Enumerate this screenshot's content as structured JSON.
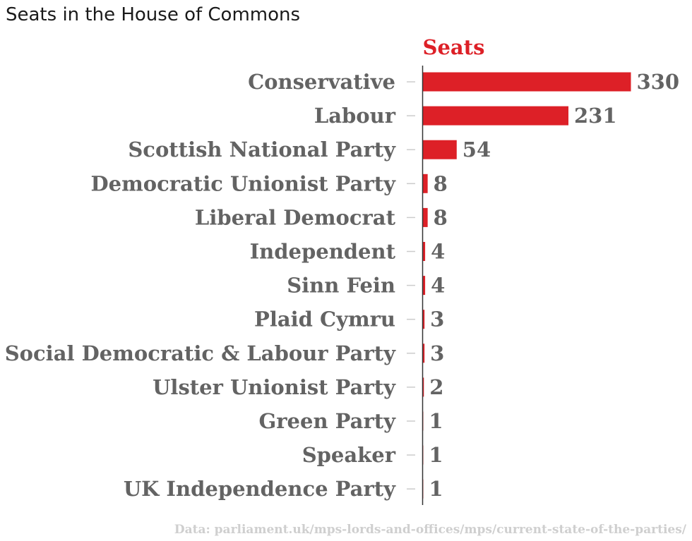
{
  "title": "Seats in the House of Commons",
  "source": "Data: parliament.uk/mps-lords-and-offices/mps/current-state-of-the-parties/",
  "colors": {
    "bar": "#dd2027",
    "header": "#dd2027",
    "label": "#636363",
    "tick": "#cccccc",
    "axis": "#333333",
    "source": "#cfcfcf"
  },
  "chart_data": {
    "type": "bar",
    "orientation": "horizontal",
    "title": "Seats in the House of Commons",
    "categories": [
      "Conservative",
      "Labour",
      "Scottish National Party",
      "Democratic Unionist Party",
      "Liberal Democrat",
      "Independent",
      "Sinn Fein",
      "Plaid Cymru",
      "Social Democratic & Labour Party",
      "Ulster Unionist Party",
      "Green Party",
      "Speaker",
      "UK Independence Party"
    ],
    "series": [
      {
        "name": "Seats",
        "values": [
          330,
          231,
          54,
          8,
          8,
          4,
          4,
          3,
          3,
          2,
          1,
          1,
          1
        ]
      }
    ],
    "xlim": [
      0,
      330
    ],
    "grid": false,
    "data_labels": true
  }
}
